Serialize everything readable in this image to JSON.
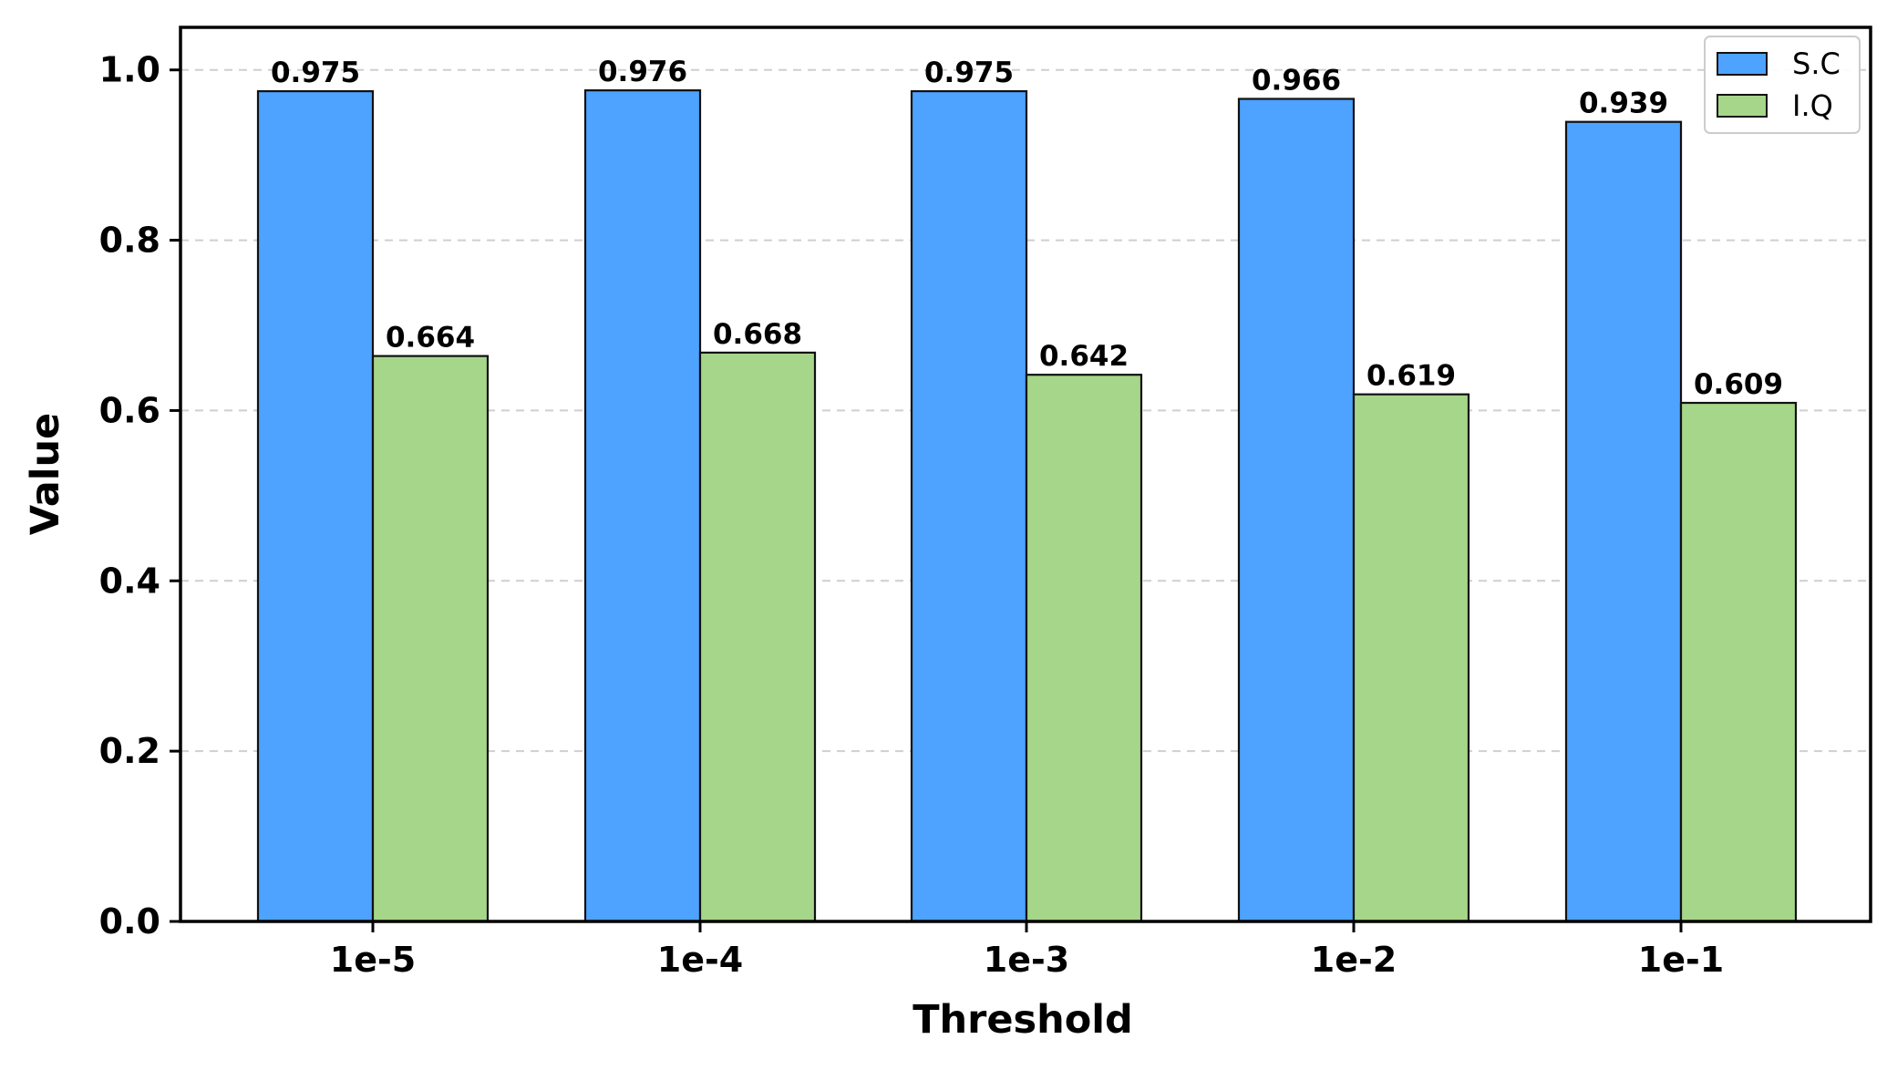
{
  "chart_data": {
    "type": "bar",
    "title": "",
    "xlabel": "Threshold",
    "ylabel": "Value",
    "categories": [
      "1e-5",
      "1e-4",
      "1e-3",
      "1e-2",
      "1e-1"
    ],
    "series": [
      {
        "name": "S.C",
        "color": "#4da3ff",
        "values": [
          0.975,
          0.976,
          0.975,
          0.966,
          0.939
        ],
        "labels": [
          "0.975",
          "0.976",
          "0.975",
          "0.966",
          "0.939"
        ]
      },
      {
        "name": "I.Q",
        "color": "#a5d68a",
        "values": [
          0.664,
          0.668,
          0.642,
          0.619,
          0.609
        ],
        "labels": [
          "0.664",
          "0.668",
          "0.642",
          "0.619",
          "0.609"
        ]
      }
    ],
    "ylim": [
      0.0,
      1.05
    ],
    "yticks": [
      0.0,
      0.2,
      0.4,
      0.6,
      0.8,
      1.0
    ],
    "ytick_labels": [
      "0.0",
      "0.2",
      "0.4",
      "0.6",
      "0.8",
      "1.0"
    ],
    "grid": "horizontal-dashed",
    "legend_position": "top-right"
  }
}
